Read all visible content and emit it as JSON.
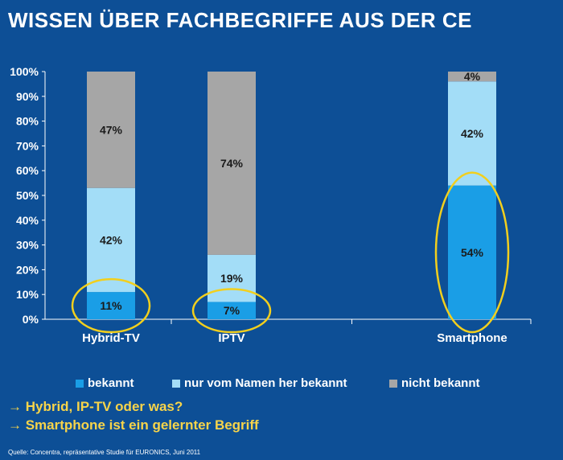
{
  "title": "WISSEN ÜBER FACHBEGRIFFE AUS DER CE",
  "notes": [
    "→ Hybrid, IP-TV oder was?",
    "→ Smartphone ist ein gelernter Begriff"
  ],
  "source": "Quelle: Concentra, repräsentative Studie für EURONICS, Juni 2011",
  "colors": {
    "background": "#0d4f96",
    "bekannt": "#1a9ee6",
    "nur_vom_namen": "#a3ddf7",
    "nicht_bekannt": "#a6a6a6",
    "highlight": "#f2cf1d"
  },
  "chart_data": {
    "type": "bar",
    "stacked": true,
    "categories": [
      "Hybrid-TV",
      "IPTV",
      "Smartphone"
    ],
    "series": [
      {
        "name": "bekannt",
        "values": [
          11,
          7,
          54
        ],
        "labels": [
          "11%",
          "7%",
          "54%"
        ]
      },
      {
        "name": "nur vom Namen her bekannt",
        "values": [
          42,
          19,
          42
        ],
        "labels": [
          "42%",
          "19%",
          "42%"
        ]
      },
      {
        "name": "nicht bekannt",
        "values": [
          47,
          74,
          4
        ],
        "labels": [
          "47%",
          "74%",
          "4%"
        ]
      }
    ],
    "ylim": [
      0,
      100
    ],
    "yticks": [
      "0%",
      "10%",
      "20%",
      "30%",
      "40%",
      "50%",
      "60%",
      "70%",
      "80%",
      "90%",
      "100%"
    ],
    "legend_position": "bottom",
    "highlighted_segments": "bekannt"
  }
}
